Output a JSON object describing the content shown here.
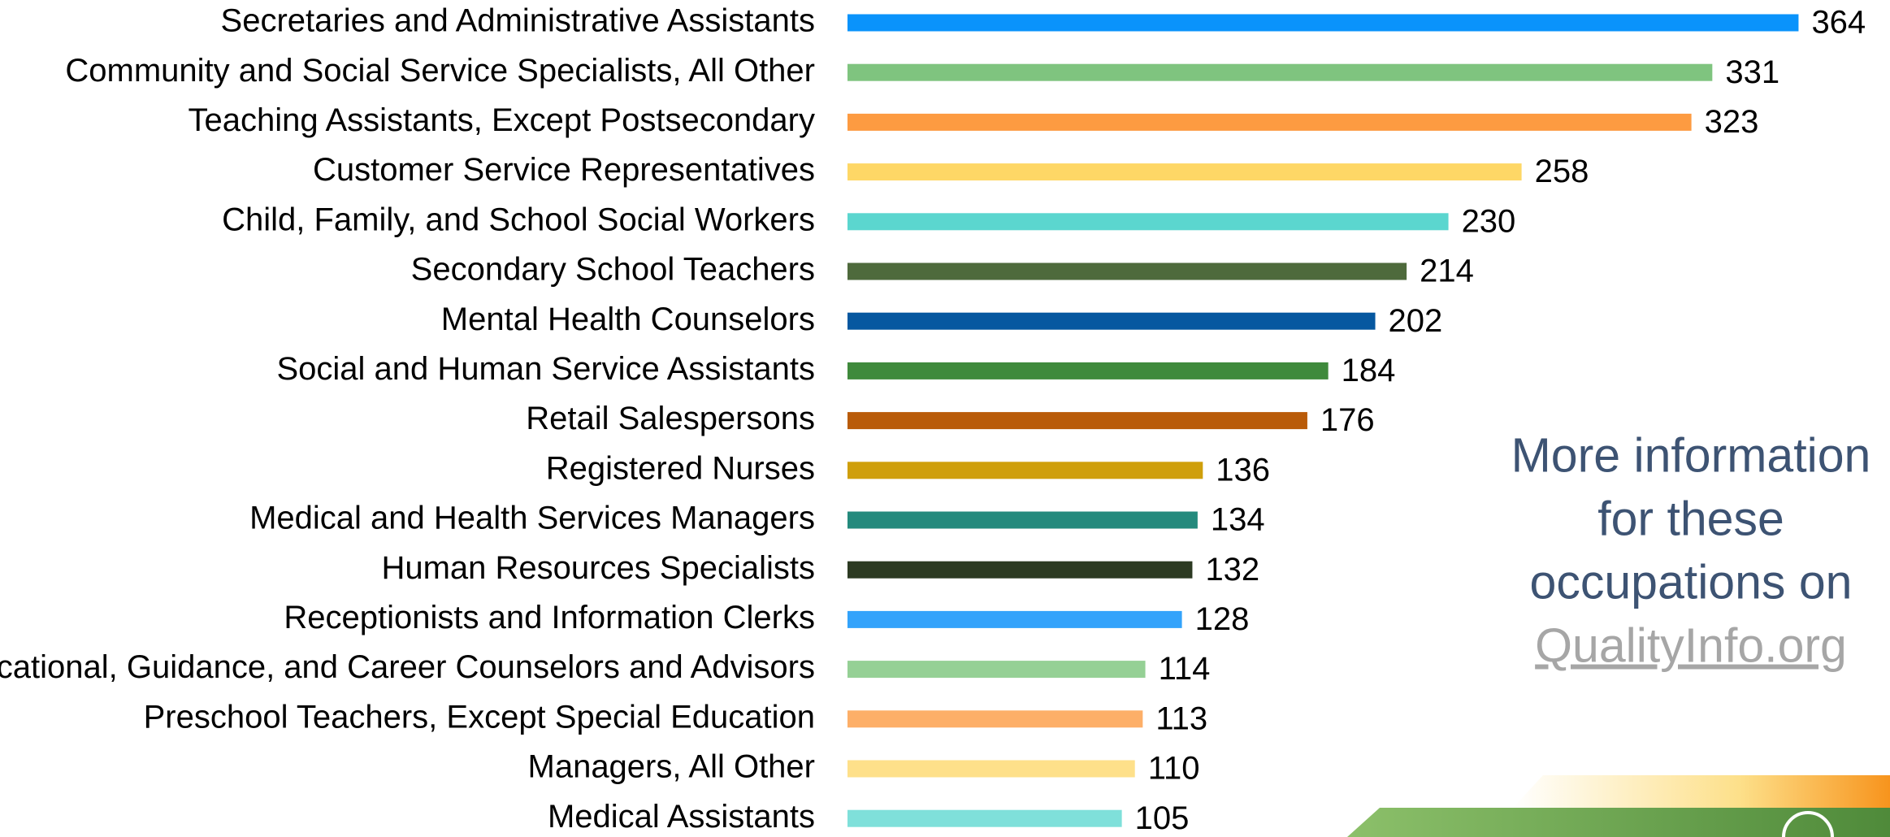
{
  "chart_data": {
    "type": "bar",
    "orientation": "horizontal",
    "categories": [
      "Secretaries and Administrative Assistants",
      "Community and Social Service Specialists, All Other",
      "Teaching Assistants, Except Postsecondary",
      "Customer Service Representatives",
      "Child, Family, and School Social Workers",
      "Secondary School Teachers",
      "Mental Health Counselors",
      "Social and Human Service Assistants",
      "Retail Salespersons",
      "Registered Nurses",
      "Medical and Health Services Managers",
      "Human Resources Specialists",
      "Receptionists and Information Clerks",
      "Educational, Guidance, and Career Counselors and Advisors",
      "Preschool Teachers, Except Special Education",
      "Managers, All Other",
      "Medical Assistants"
    ],
    "values": [
      364,
      331,
      323,
      258,
      230,
      214,
      202,
      184,
      176,
      136,
      134,
      132,
      128,
      114,
      113,
      110,
      105
    ],
    "colors": [
      "#0a93fb",
      "#7fc47f",
      "#fd9b41",
      "#fed766",
      "#5bd6cf",
      "#4e6a3c",
      "#0658a0",
      "#3f8a3c",
      "#b95b09",
      "#cf9f0b",
      "#248a7d",
      "#2c3a22",
      "#33a3fb",
      "#95d095",
      "#fdaf68",
      "#fee08a",
      "#7fe0da"
    ]
  },
  "side_note": {
    "lines": [
      "More information",
      "for these",
      "occupations on"
    ],
    "link": "QualityInfo.org"
  }
}
